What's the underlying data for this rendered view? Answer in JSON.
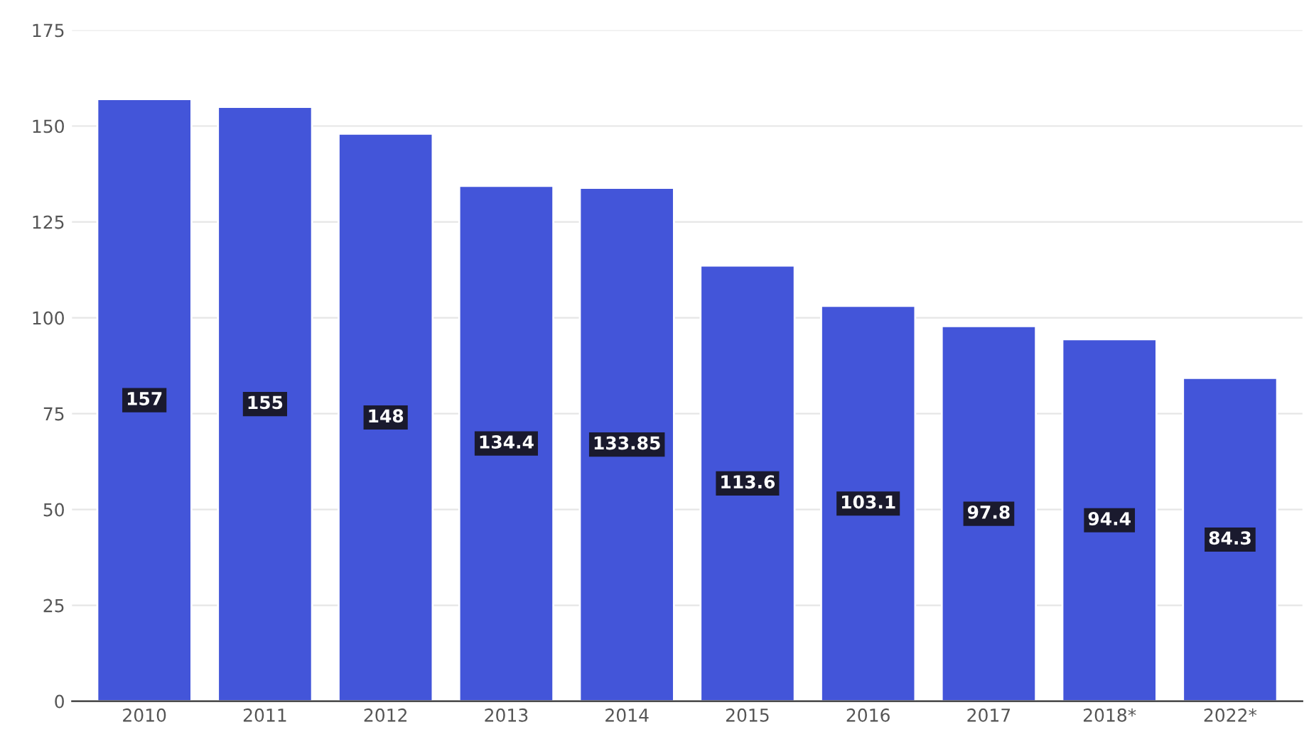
{
  "chart_data": {
    "type": "bar",
    "categories": [
      "2010",
      "2011",
      "2012",
      "2013",
      "2014",
      "2015",
      "2016",
      "2017",
      "2018*",
      "2022*"
    ],
    "values": [
      157,
      155,
      148,
      134.4,
      133.85,
      113.6,
      103.1,
      97.8,
      94.4,
      84.3
    ],
    "color": "#4355d9",
    "ylim": [
      0,
      175
    ],
    "yticks": [
      0,
      25,
      50,
      75,
      100,
      125,
      150,
      175
    ],
    "grid": "y",
    "data_labels": true
  }
}
